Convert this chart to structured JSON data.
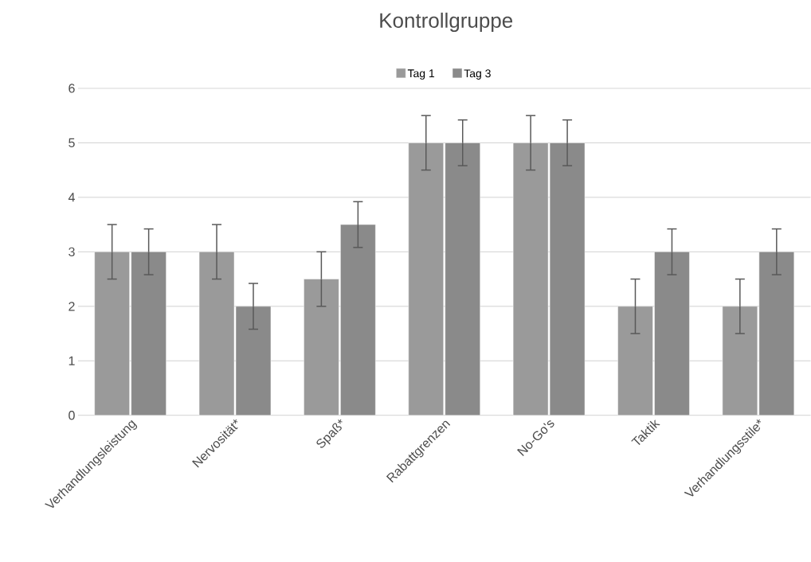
{
  "chart_data": {
    "type": "bar",
    "title": "Kontrollgruppe",
    "categories": [
      "Verhandlungsleistung",
      "Nervosität*",
      "Spaß*",
      "Rabattgrenzen",
      "No-Go's",
      "Taktik",
      "Verhandlungsstile*"
    ],
    "series": [
      {
        "name": "Tag 1",
        "color": "#9a9a9a",
        "values": [
          3,
          3,
          2.5,
          5,
          5,
          2,
          2
        ],
        "errors": [
          0.5,
          0.5,
          0.5,
          0.5,
          0.5,
          0.5,
          0.5
        ]
      },
      {
        "name": "Tag 3",
        "color": "#8a8a8a",
        "values": [
          3,
          2,
          3.5,
          5,
          5,
          3,
          3
        ],
        "errors": [
          0.42,
          0.42,
          0.42,
          0.42,
          0.42,
          0.42,
          0.42
        ]
      }
    ],
    "ylim": [
      0,
      6
    ],
    "yticks": [
      0,
      1,
      2,
      3,
      4,
      5,
      6
    ],
    "grid": "y",
    "legend": "top"
  }
}
